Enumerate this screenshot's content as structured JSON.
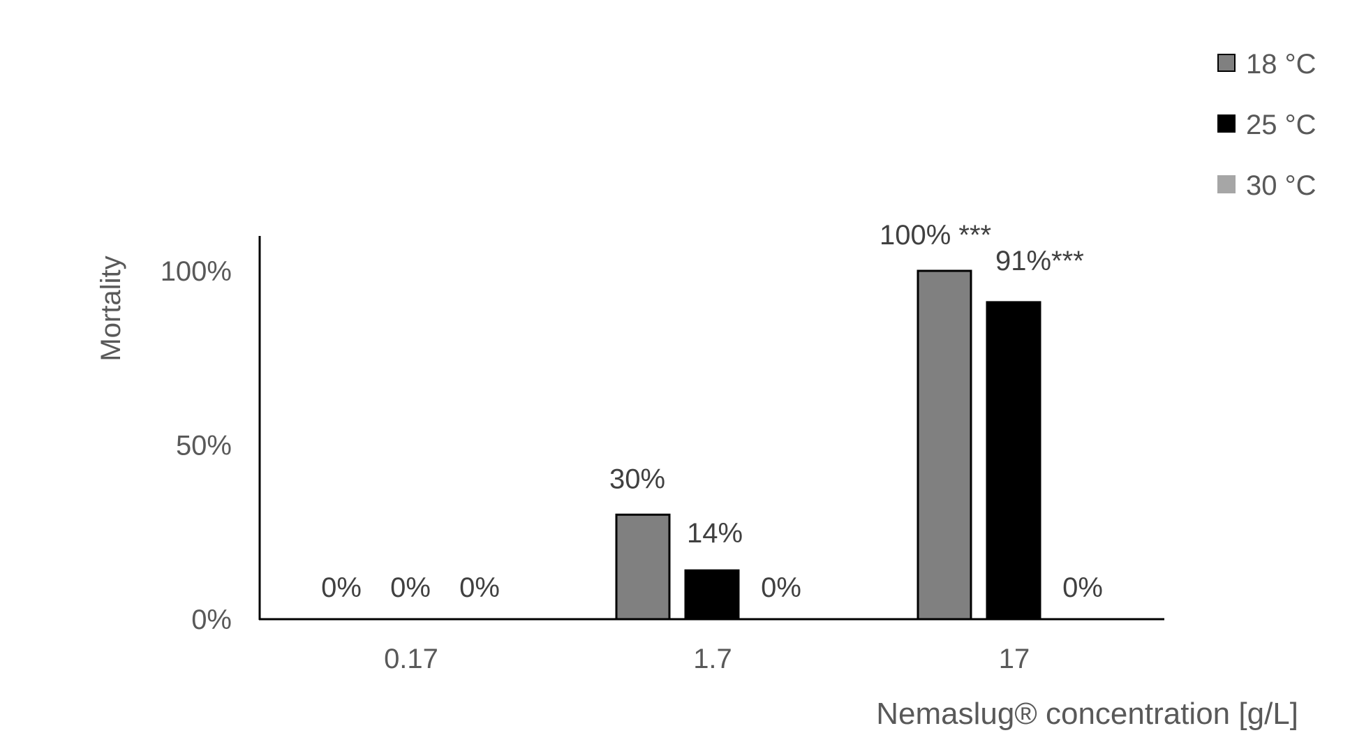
{
  "chart_data": {
    "type": "bar",
    "title": "",
    "ylabel": "Mortality",
    "xlabel": "Nemaslug® concentration  [g/L]",
    "categories": [
      "0.17",
      "1.7",
      "17"
    ],
    "ylim": [
      0,
      100
    ],
    "yticks": [
      0,
      50,
      100
    ],
    "ytick_labels": [
      "0%",
      "50%",
      "100%"
    ],
    "grid": false,
    "legend_position": "top-right",
    "series": [
      {
        "name": "18 °C",
        "color": "#808080",
        "values": [
          0,
          30,
          100
        ],
        "data_labels": [
          "0%",
          "30%",
          "100% ***"
        ]
      },
      {
        "name": "25 °C",
        "color": "#000000",
        "values": [
          0,
          14,
          91
        ],
        "data_labels": [
          "0%",
          "14%",
          "91%***"
        ]
      },
      {
        "name": "30 °C",
        "color": "#a6a6a6",
        "values": [
          0,
          0,
          0
        ],
        "data_labels": [
          "0%",
          "0%",
          "0%"
        ]
      }
    ]
  }
}
